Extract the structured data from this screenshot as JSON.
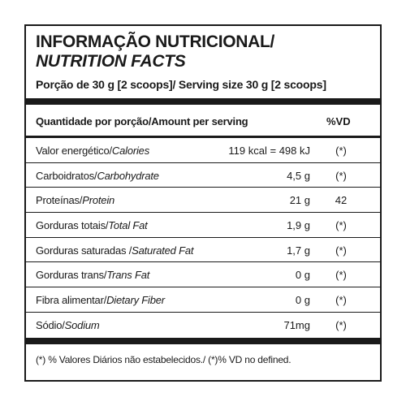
{
  "label": {
    "title_pt": "INFORMAÇÃO NUTRICIONAL/",
    "title_en": "NUTRITION FACTS",
    "serving": "Porção de 30 g  [2 scoops]/ Serving size 30 g [2 scoops]",
    "header": {
      "amount_per_serving": "Quantidade por porção/Amount per serving",
      "daily_value": "%VD"
    },
    "rows": [
      {
        "name_pt": "Valor energético/",
        "name_en": "Calories",
        "value": "119 kcal = 498 kJ",
        "dv": "(*)"
      },
      {
        "name_pt": "Carboidratos/",
        "name_en": "Carbohydrate",
        "value": "4,5 g",
        "dv": "(*)"
      },
      {
        "name_pt": "Proteínas/",
        "name_en": "Protein",
        "value": "21 g",
        "dv": "42"
      },
      {
        "name_pt": "Gorduras totais/",
        "name_en": "Total Fat",
        "value": "1,9 g",
        "dv": "(*)"
      },
      {
        "name_pt": "Gorduras saturadas /",
        "name_en": "Saturated Fat",
        "value": "1,7 g",
        "dv": "(*)"
      },
      {
        "name_pt": "Gorduras trans/",
        "name_en": "Trans Fat",
        "value": "0 g",
        "dv": "(*)"
      },
      {
        "name_pt": "Fibra alimentar/",
        "name_en": "Dietary Fiber",
        "value": "0 g",
        "dv": "(*)"
      },
      {
        "name_pt": "Sódio/",
        "name_en": "Sodium",
        "value": "71mg",
        "dv": "(*)"
      }
    ],
    "footnote": "(*) % Valores Diários não estabelecidos./ (*)% VD no defined."
  }
}
